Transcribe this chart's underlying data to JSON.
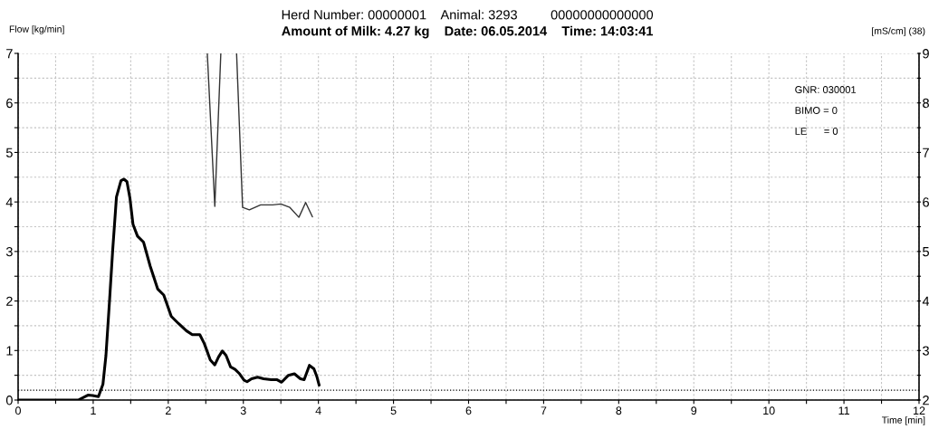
{
  "chart_data": {
    "type": "line",
    "title": "Herd Number: 00000001    Animal: 3293         00000000000000",
    "subtitle": "Amount of Milk: 4.27 kg    Date: 06.05.2014    Time: 14:03:41",
    "xlabel": "Time [min]",
    "ylabel": "Flow [kg/min]",
    "y2label": "[mS/cm] (38)",
    "annotations": [
      "GNR: 030001",
      "BIMO = 0",
      "LE      = 0"
    ],
    "series": [
      {
        "color": "#000000",
        "x": [
          0,
          0.8,
          0.93,
          0.99,
          1.07,
          1.13,
          1.17,
          1.22,
          1.26,
          1.31,
          1.37,
          1.41,
          1.45,
          1.49,
          1.53,
          1.59,
          1.67,
          1.76,
          1.86,
          1.94,
          2.04,
          2.14,
          2.24,
          2.32,
          2.42,
          2.48,
          2.56,
          2.62,
          2.67,
          2.72,
          2.77,
          2.83,
          2.89,
          2.95,
          3.01,
          3.05,
          3.11,
          3.19,
          3.27,
          3.37,
          3.45,
          3.51,
          3.6,
          3.68,
          3.76,
          3.81,
          3.88,
          3.94,
          3.98,
          4.01
        ],
        "values": [
          0,
          0,
          0.1,
          0.09,
          0.07,
          0.32,
          0.9,
          2.06,
          3.03,
          4.1,
          4.43,
          4.46,
          4.41,
          4.07,
          3.55,
          3.31,
          3.19,
          2.7,
          2.24,
          2.12,
          1.69,
          1.54,
          1.4,
          1.32,
          1.32,
          1.14,
          0.81,
          0.71,
          0.87,
          0.99,
          0.9,
          0.67,
          0.62,
          0.53,
          0.4,
          0.37,
          0.43,
          0.46,
          0.43,
          0.41,
          0.41,
          0.36,
          0.5,
          0.53,
          0.43,
          0.41,
          0.7,
          0.63,
          0.47,
          0.3
        ]
      },
      {
        "color": "#333333",
        "axis": "y2",
        "x": [
          2.52,
          2.62,
          2.7,
          2.8,
          2.91,
          2.99,
          3.08,
          3.23,
          3.39,
          3.5,
          3.62,
          3.74,
          3.83,
          3.92
        ],
        "values": [
          9,
          5.91,
          9,
          null,
          9,
          5.89,
          5.84,
          5.94,
          5.94,
          5.96,
          5.89,
          5.69,
          5.99,
          5.7
        ]
      }
    ],
    "xlim": [
      0,
      12
    ],
    "ylim": [
      0,
      7
    ],
    "y2lim": [
      2,
      9
    ],
    "xticks": [
      0,
      {
        "value": 0.5,
        "label": null
      },
      1,
      {
        "value": 1.5,
        "label": null
      },
      2,
      {
        "value": 2.5,
        "label": null
      },
      3,
      {
        "value": 3.5,
        "label": null
      },
      4,
      {
        "value": 4.5,
        "label": null
      },
      5,
      {
        "value": 5.5,
        "label": null
      },
      6,
      {
        "value": 6.5,
        "label": null
      },
      7,
      {
        "value": 7.5,
        "label": null
      },
      8,
      {
        "value": 8.5,
        "label": null
      },
      9,
      {
        "value": 9.5,
        "label": null
      },
      10,
      {
        "value": 10.5,
        "label": null
      },
      11,
      {
        "value": 11.5,
        "label": null
      },
      12
    ],
    "yticks": [
      0,
      {
        "value": 0.5,
        "label": null
      },
      1,
      {
        "value": 1.5,
        "label": null
      },
      2,
      {
        "value": 2.5,
        "label": null
      },
      3,
      {
        "value": 3.5,
        "label": null
      },
      4,
      {
        "value": 4.5,
        "label": null
      },
      5,
      {
        "value": 5.5,
        "label": null
      },
      6,
      {
        "value": 6.5,
        "label": null
      },
      7
    ],
    "y2ticks": [
      2,
      {
        "value": 2.5,
        "label": null
      },
      3,
      {
        "value": 3.5,
        "label": null
      },
      4,
      {
        "value": 4.5,
        "label": null
      },
      5,
      {
        "value": 5.5,
        "label": null
      },
      6,
      {
        "value": 6.5,
        "label": null
      },
      7,
      {
        "value": 7.5,
        "label": null
      },
      8,
      {
        "value": 8.5,
        "label": null
      },
      9
    ],
    "grid": true,
    "ref_lines": [
      {
        "axis": "y",
        "value": 0.2,
        "color": "#000000",
        "line_style": "dotted"
      }
    ]
  }
}
